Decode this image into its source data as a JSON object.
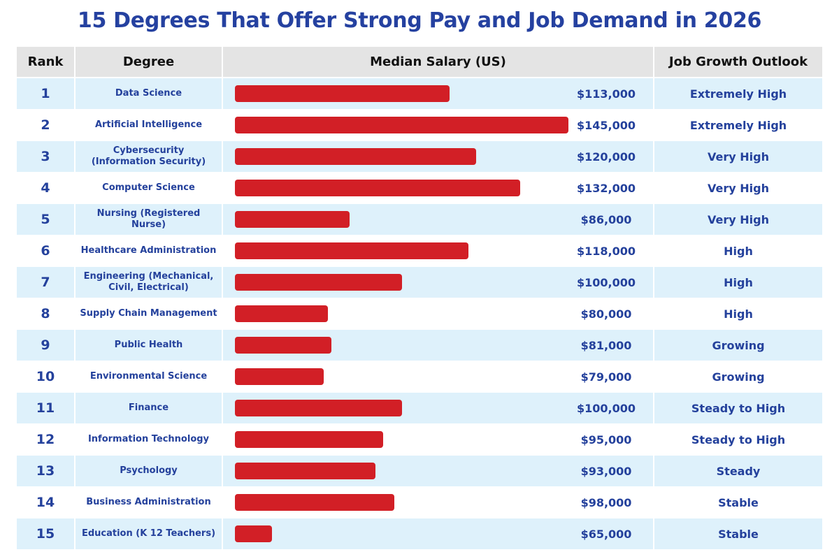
{
  "title": "15 Degrees That Offer Strong Pay and Job Demand in 2026",
  "colors": {
    "title": "#2541a0",
    "bar": "#d21f26",
    "row_alt": "#def1fb",
    "header": "#e4e4e4"
  },
  "headers": {
    "rank": "Rank",
    "degree": "Degree",
    "salary": "Median Salary (US)",
    "growth": "Job Growth Outlook"
  },
  "chart_data": {
    "type": "bar",
    "orientation": "horizontal",
    "categories": [
      "Data Science",
      "Artificial Intelligence",
      "Cybersecurity (Information Security)",
      "Computer Science",
      "Nursing (Registered Nurse)",
      "Healthcare Administration",
      "Engineering (Mechanical, Civil, Electrical)",
      "Supply Chain Management",
      "Public Health",
      "Environmental Science",
      "Finance",
      "Information Technology",
      "Psychology",
      "Business Administration",
      "Education (K 12 Teachers)"
    ],
    "values": [
      113000,
      145000,
      120000,
      132000,
      86000,
      118000,
      100000,
      80000,
      81000,
      79000,
      100000,
      95000,
      93000,
      98000,
      65000
    ],
    "rows": [
      {
        "rank": "1",
        "degree": "Data Science",
        "salary": "$113,000",
        "growth": "Extremely High"
      },
      {
        "rank": "2",
        "degree": "Artificial Intelligence",
        "salary": "$145,000",
        "growth": "Extremely High"
      },
      {
        "rank": "3",
        "degree": "Cybersecurity (Information Security)",
        "salary": "$120,000",
        "growth": "Very High"
      },
      {
        "rank": "4",
        "degree": "Computer Science",
        "salary": "$132,000",
        "growth": "Very High"
      },
      {
        "rank": "5",
        "degree": "Nursing (Registered Nurse)",
        "salary": "$86,000",
        "growth": "Very High"
      },
      {
        "rank": "6",
        "degree": "Healthcare Administration",
        "salary": "$118,000",
        "growth": "High"
      },
      {
        "rank": "7",
        "degree": "Engineering (Mechanical, Civil, Electrical)",
        "salary": "$100,000",
        "growth": "High"
      },
      {
        "rank": "8",
        "degree": "Supply Chain Management",
        "salary": "$80,000",
        "growth": "High"
      },
      {
        "rank": "9",
        "degree": "Public Health",
        "salary": "$81,000",
        "growth": "Growing"
      },
      {
        "rank": "10",
        "degree": "Environmental Science",
        "salary": "$79,000",
        "growth": "Growing"
      },
      {
        "rank": "11",
        "degree": "Finance",
        "salary": "$100,000",
        "growth": "Steady to High"
      },
      {
        "rank": "12",
        "degree": "Information Technology",
        "salary": "$95,000",
        "growth": "Steady to High"
      },
      {
        "rank": "13",
        "degree": "Psychology",
        "salary": "$93,000",
        "growth": "Steady"
      },
      {
        "rank": "14",
        "degree": "Business Administration",
        "salary": "$98,000",
        "growth": "Stable"
      },
      {
        "rank": "15",
        "degree": "Education (K 12 Teachers)",
        "salary": "$65,000",
        "growth": "Stable"
      }
    ]
  }
}
